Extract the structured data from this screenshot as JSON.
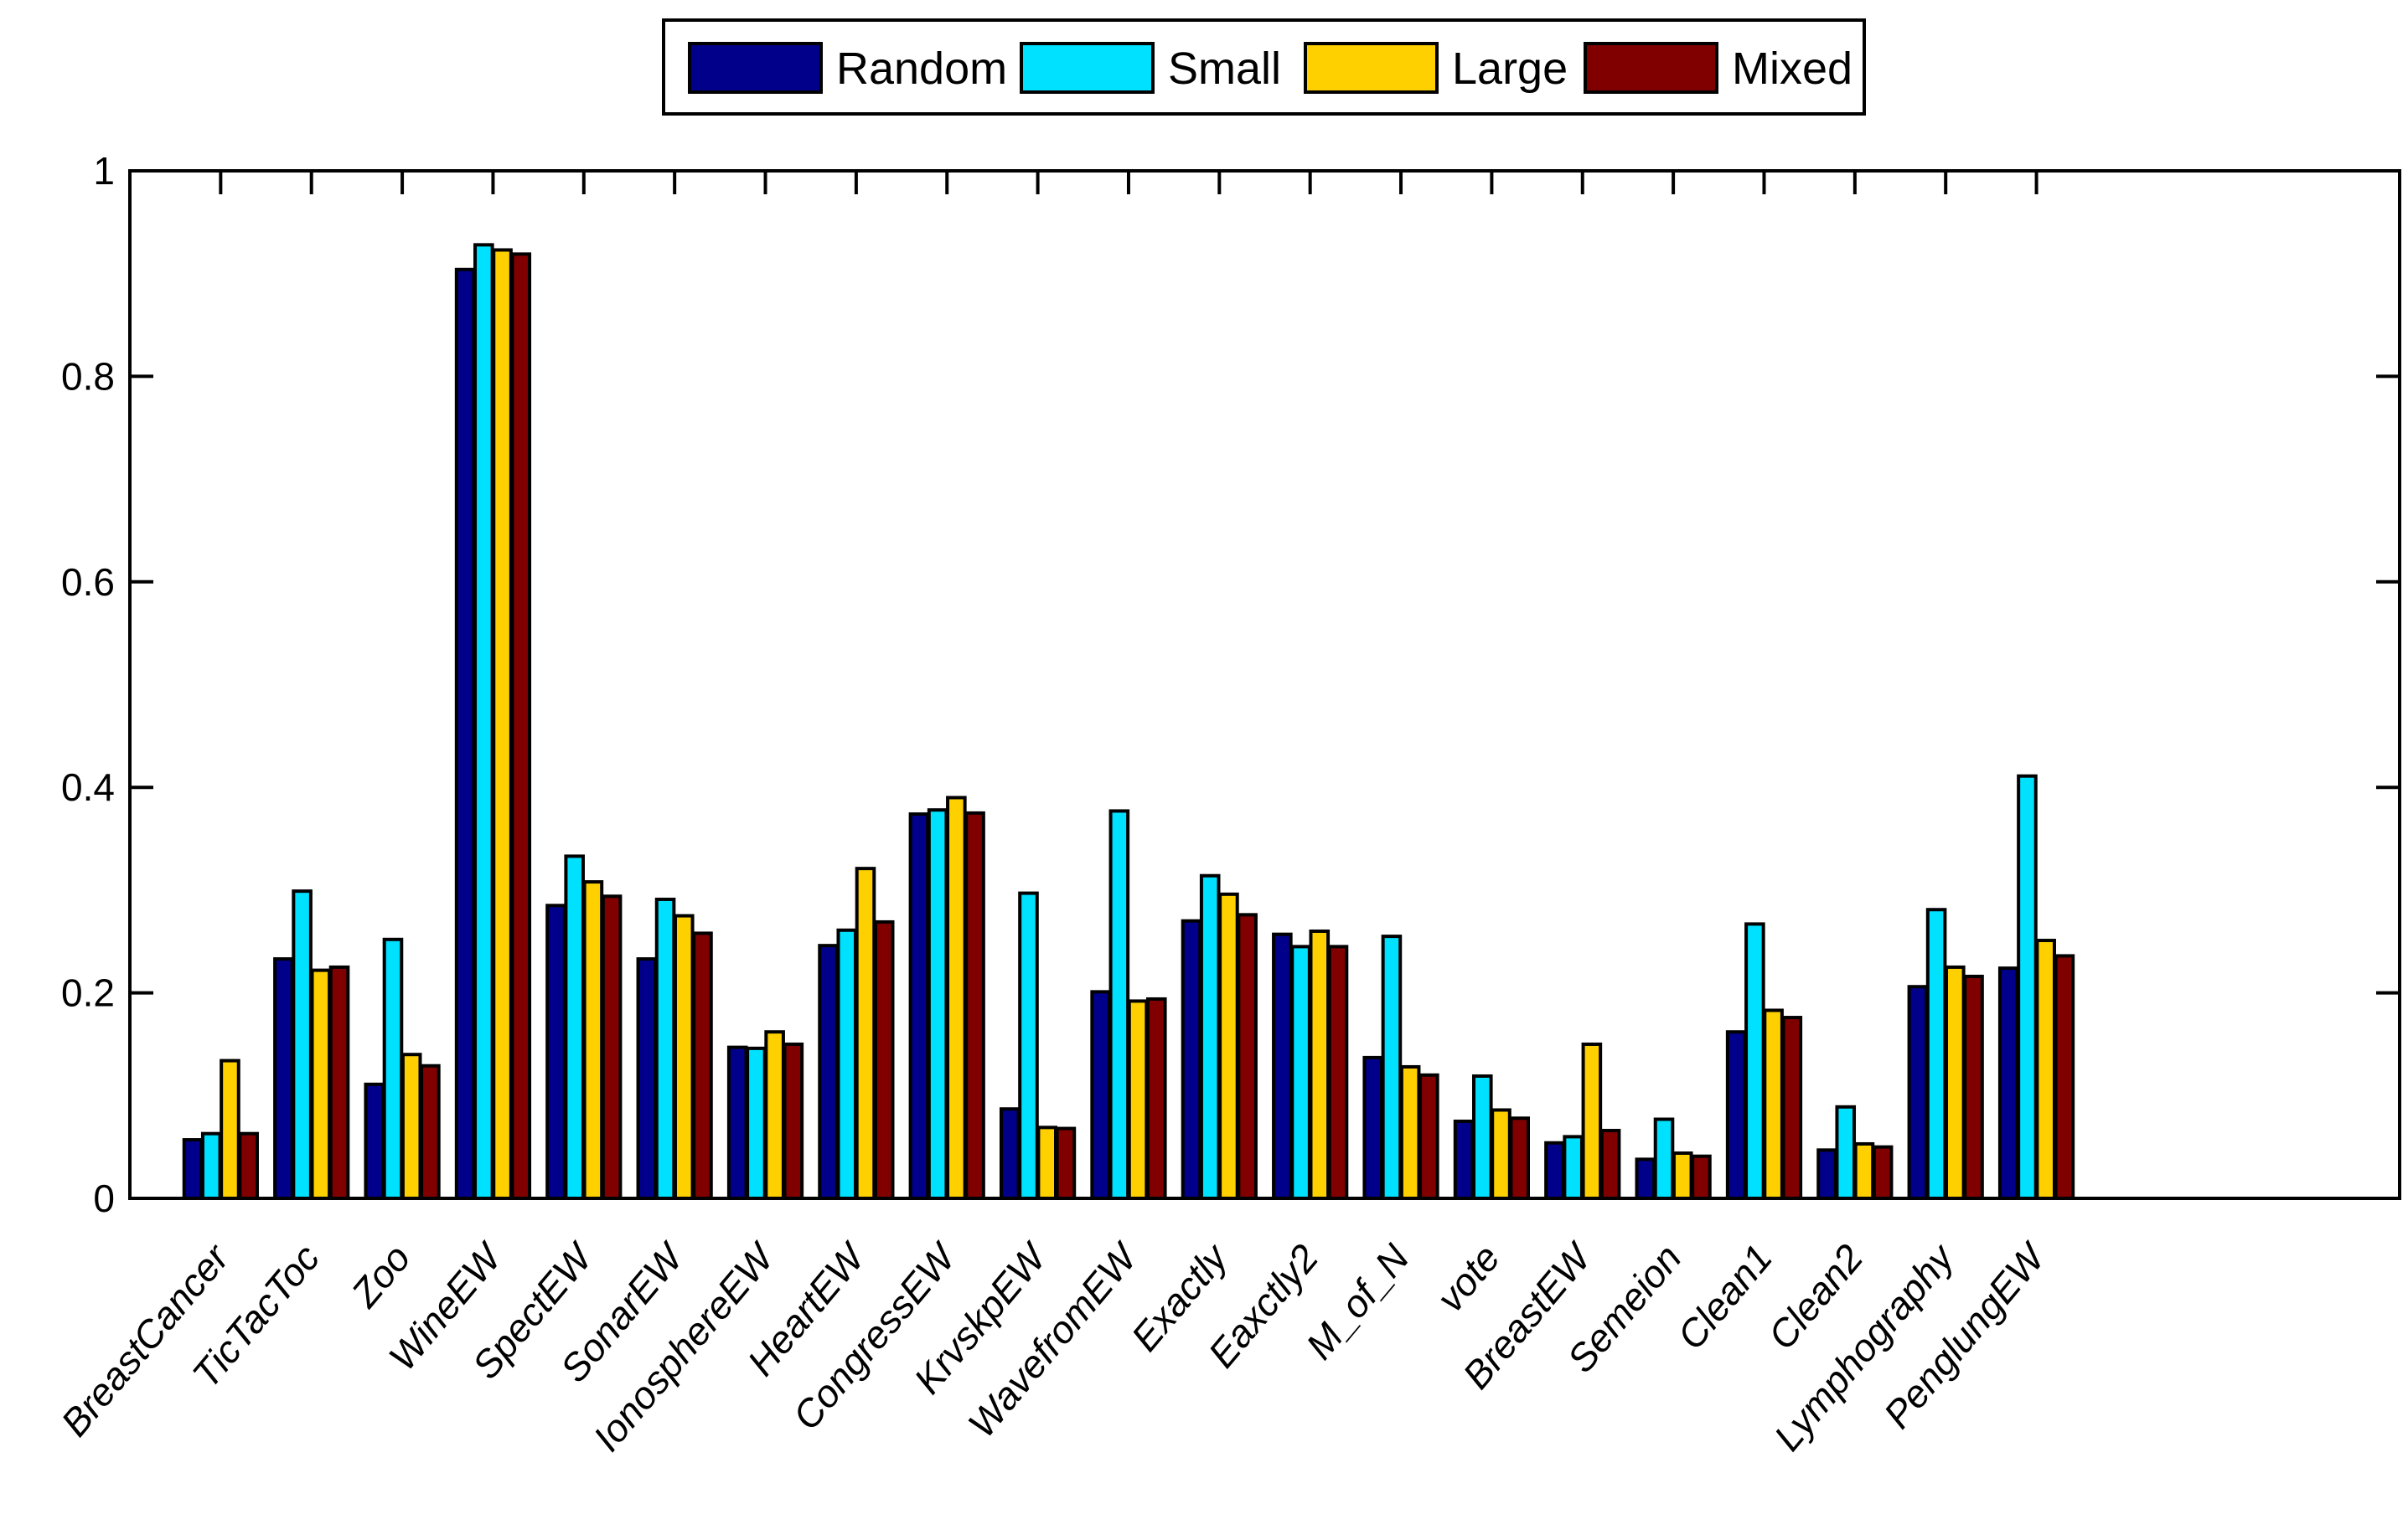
{
  "chart_data": {
    "type": "bar",
    "title": "",
    "xlabel": "",
    "ylabel": "",
    "ylim": [
      0,
      1
    ],
    "xlim": [
      0,
      25
    ],
    "yticks": [
      "0",
      "0.2",
      "0.4",
      "0.6",
      "0.8",
      "1"
    ],
    "grid": false,
    "legend_position": "top-center",
    "categories": [
      "BreastCancer",
      "TicTacToc",
      "Zoo",
      "WineEW",
      "SpectEW",
      "SonarEW",
      "IonosphereEW",
      "HeartEW",
      "CongressEW",
      "KrvskpEW",
      "WavefromEW",
      "Exactly",
      "Eaxctly2",
      "M_of_N",
      "vote",
      "BreastEW",
      "Semeion",
      "Clean1",
      "Clean2",
      "Lymphography",
      "PenglungEW"
    ],
    "series": [
      {
        "name": "Random",
        "color": "#00008B",
        "values": [
          0.057,
          0.233,
          0.111,
          0.904,
          0.285,
          0.233,
          0.147,
          0.246,
          0.374,
          0.087,
          0.201,
          0.27,
          0.257,
          0.137,
          0.075,
          0.054,
          0.038,
          0.162,
          0.047,
          0.206,
          0.224
        ]
      },
      {
        "name": "Small",
        "color": "#00E0FF",
        "values": [
          0.063,
          0.299,
          0.252,
          0.928,
          0.333,
          0.291,
          0.146,
          0.261,
          0.378,
          0.297,
          0.377,
          0.314,
          0.245,
          0.255,
          0.119,
          0.06,
          0.077,
          0.267,
          0.089,
          0.281,
          0.411
        ]
      },
      {
        "name": "Large",
        "color": "#FFD000",
        "values": [
          0.134,
          0.222,
          0.14,
          0.923,
          0.308,
          0.275,
          0.162,
          0.321,
          0.39,
          0.069,
          0.192,
          0.296,
          0.26,
          0.128,
          0.086,
          0.15,
          0.044,
          0.183,
          0.053,
          0.225,
          0.251
        ]
      },
      {
        "name": "Mixed",
        "color": "#800000",
        "values": [
          0.063,
          0.225,
          0.129,
          0.919,
          0.294,
          0.258,
          0.15,
          0.269,
          0.375,
          0.068,
          0.194,
          0.276,
          0.245,
          0.12,
          0.078,
          0.066,
          0.041,
          0.176,
          0.05,
          0.216,
          0.236
        ]
      }
    ]
  }
}
